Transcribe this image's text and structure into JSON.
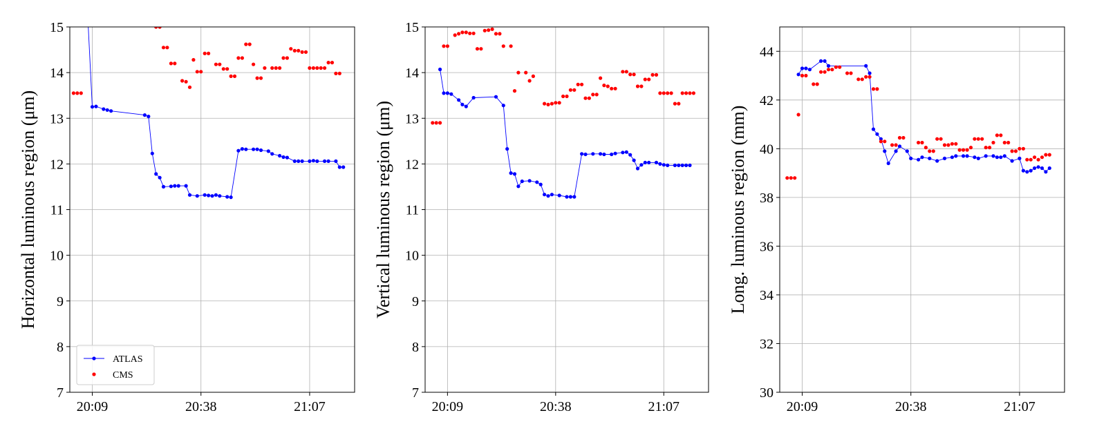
{
  "chart_data": [
    {
      "type": "line",
      "ylabel": "Horizontal luminous region (μm)",
      "xlabel": "",
      "ylim": [
        7,
        15
      ],
      "xlim": [
        "20:03",
        "21:19"
      ],
      "xticks": [
        "20:09",
        "20:38",
        "21:07"
      ],
      "yticks": [
        7,
        8,
        9,
        10,
        11,
        12,
        13,
        14,
        15
      ],
      "grid": true,
      "legend": {
        "placement": "bottom-left",
        "entries": [
          "ATLAS",
          "CMS"
        ]
      },
      "series": [
        {
          "name": "ATLAS",
          "style": "line+markers",
          "color": "#0000ff",
          "x": [
            "20:07",
            "20:09",
            "20:10",
            "20:12",
            "20:13",
            "20:14",
            "20:23",
            "20:24",
            "20:25",
            "20:26",
            "20:27",
            "20:28",
            "20:30",
            "20:31",
            "20:32",
            "20:34",
            "20:35",
            "20:37",
            "20:39",
            "20:40",
            "20:41",
            "20:42",
            "20:43",
            "20:45",
            "20:46",
            "20:48",
            "20:49",
            "20:50",
            "20:52",
            "20:53",
            "20:54",
            "20:56",
            "20:57",
            "20:59",
            "21:00",
            "21:01",
            "21:03",
            "21:04",
            "21:05",
            "21:07",
            "21:08",
            "21:09",
            "21:11",
            "21:12",
            "21:14",
            "21:15",
            "21:16"
          ],
          "y": [
            16.5,
            13.25,
            13.26,
            13.2,
            13.18,
            13.16,
            13.07,
            13.04,
            12.23,
            11.78,
            11.7,
            11.5,
            11.51,
            11.52,
            11.52,
            11.52,
            11.32,
            11.3,
            11.32,
            11.31,
            11.3,
            11.32,
            11.3,
            11.28,
            11.27,
            12.29,
            12.33,
            12.32,
            12.32,
            12.32,
            12.3,
            12.28,
            12.22,
            12.18,
            12.15,
            12.14,
            12.06,
            12.06,
            12.06,
            12.06,
            12.07,
            12.06,
            12.06,
            12.06,
            12.06,
            11.93,
            11.93
          ]
        },
        {
          "name": "CMS",
          "style": "markers",
          "color": "#ff0000",
          "x": [
            "20:04",
            "20:05",
            "20:06",
            "20:26",
            "20:27",
            "20:28",
            "20:29",
            "20:30",
            "20:31",
            "20:33",
            "20:34",
            "20:35",
            "20:36",
            "20:37",
            "20:38",
            "20:39",
            "20:40",
            "20:42",
            "20:43",
            "20:44",
            "20:45",
            "20:46",
            "20:47",
            "20:48",
            "20:49",
            "20:50",
            "20:51",
            "20:52",
            "20:53",
            "20:54",
            "20:55",
            "20:57",
            "20:58",
            "20:59",
            "21:00",
            "21:01",
            "21:02",
            "21:03",
            "21:04",
            "21:05",
            "21:06",
            "21:07",
            "21:08",
            "21:09",
            "21:10",
            "21:11",
            "21:12",
            "21:13",
            "21:14",
            "21:15"
          ],
          "y": [
            13.55,
            13.55,
            13.55,
            15.0,
            15.0,
            14.55,
            14.55,
            14.2,
            14.2,
            13.82,
            13.8,
            13.68,
            14.28,
            14.02,
            14.02,
            14.42,
            14.42,
            14.18,
            14.18,
            14.08,
            14.08,
            13.92,
            13.92,
            14.32,
            14.32,
            14.62,
            14.62,
            14.18,
            13.88,
            13.88,
            14.1,
            14.1,
            14.1,
            14.1,
            14.32,
            14.32,
            14.52,
            14.48,
            14.48,
            14.45,
            14.45,
            14.1,
            14.1,
            14.1,
            14.1,
            14.1,
            14.22,
            14.22,
            13.98,
            13.98
          ]
        }
      ]
    },
    {
      "type": "line",
      "ylabel": "Vertical luminous region (μm)",
      "xlabel": "",
      "ylim": [
        7,
        15
      ],
      "xlim": [
        "20:03",
        "21:19"
      ],
      "xticks": [
        "20:09",
        "20:38",
        "21:07"
      ],
      "yticks": [
        7,
        8,
        9,
        10,
        11,
        12,
        13,
        14,
        15
      ],
      "grid": true,
      "series": [
        {
          "name": "ATLAS",
          "style": "line+markers",
          "color": "#0000ff",
          "x": [
            "20:07",
            "20:08",
            "20:09",
            "20:10",
            "20:12",
            "20:13",
            "20:14",
            "20:16",
            "20:22",
            "20:24",
            "20:25",
            "20:26",
            "20:27",
            "20:28",
            "20:29",
            "20:31",
            "20:33",
            "20:34",
            "20:35",
            "20:36",
            "20:37",
            "20:39",
            "20:41",
            "20:42",
            "20:43",
            "20:45",
            "20:46",
            "20:48",
            "20:50",
            "20:51",
            "20:53",
            "20:54",
            "20:56",
            "20:57",
            "20:58",
            "20:59",
            "21:00",
            "21:01",
            "21:02",
            "21:03",
            "21:05",
            "21:06",
            "21:07",
            "21:08",
            "21:10",
            "21:11",
            "21:12",
            "21:13",
            "21:14"
          ],
          "y": [
            14.07,
            13.55,
            13.55,
            13.53,
            13.4,
            13.3,
            13.26,
            13.45,
            13.47,
            13.28,
            12.33,
            11.8,
            11.78,
            11.51,
            11.62,
            11.63,
            11.6,
            11.55,
            11.33,
            11.3,
            11.33,
            11.31,
            11.28,
            11.28,
            11.28,
            12.22,
            12.21,
            12.22,
            12.22,
            12.21,
            12.21,
            12.23,
            12.25,
            12.26,
            12.2,
            12.08,
            11.9,
            11.98,
            12.03,
            12.03,
            12.03,
            12.0,
            11.98,
            11.97,
            11.97,
            11.97,
            11.97,
            11.97,
            11.97
          ]
        },
        {
          "name": "CMS",
          "style": "markers",
          "color": "#ff0000",
          "x": [
            "20:05",
            "20:06",
            "20:07",
            "20:08",
            "20:09",
            "20:11",
            "20:12",
            "20:13",
            "20:14",
            "20:15",
            "20:16",
            "20:17",
            "20:18",
            "20:19",
            "20:20",
            "20:21",
            "20:22",
            "20:23",
            "20:24",
            "20:26",
            "20:27",
            "20:28",
            "20:30",
            "20:31",
            "20:32",
            "20:35",
            "20:36",
            "20:37",
            "20:38",
            "20:39",
            "20:40",
            "20:41",
            "20:42",
            "20:43",
            "20:44",
            "20:45",
            "20:46",
            "20:47",
            "20:48",
            "20:49",
            "20:50",
            "20:51",
            "20:52",
            "20:53",
            "20:54",
            "20:56",
            "20:57",
            "20:58",
            "20:59",
            "21:00",
            "21:01",
            "21:02",
            "21:03",
            "21:04",
            "21:05",
            "21:06",
            "21:07",
            "21:08",
            "21:09",
            "21:10",
            "21:11",
            "21:12",
            "21:13",
            "21:14",
            "21:15"
          ],
          "y": [
            12.9,
            12.9,
            12.9,
            14.58,
            14.58,
            14.82,
            14.85,
            14.88,
            14.88,
            14.86,
            14.86,
            14.52,
            14.52,
            14.92,
            14.93,
            14.95,
            14.85,
            14.85,
            14.58,
            14.58,
            13.6,
            14.0,
            14.0,
            13.82,
            13.92,
            13.32,
            13.3,
            13.32,
            13.34,
            13.34,
            13.48,
            13.48,
            13.62,
            13.62,
            13.74,
            13.74,
            13.44,
            13.44,
            13.52,
            13.52,
            13.88,
            13.72,
            13.7,
            13.65,
            13.65,
            14.02,
            14.02,
            13.96,
            13.96,
            13.7,
            13.7,
            13.85,
            13.85,
            13.95,
            13.95,
            13.55,
            13.55,
            13.55,
            13.55,
            13.32,
            13.32,
            13.55,
            13.55,
            13.55,
            13.55
          ]
        }
      ]
    },
    {
      "type": "line",
      "ylabel": "Long. luminous region (mm)",
      "xlabel": "",
      "ylim": [
        30,
        45
      ],
      "xlim": [
        "20:03",
        "21:19"
      ],
      "xticks": [
        "20:09",
        "20:38",
        "21:07"
      ],
      "yticks": [
        30,
        32,
        34,
        36,
        38,
        40,
        42,
        44
      ],
      "grid": true,
      "series": [
        {
          "name": "ATLAS",
          "style": "line+markers",
          "color": "#0000ff",
          "x": [
            "20:08",
            "20:09",
            "20:10",
            "20:11",
            "20:14",
            "20:15",
            "20:16",
            "20:26",
            "20:27",
            "20:28",
            "20:29",
            "20:30",
            "20:31",
            "20:32",
            "20:34",
            "20:35",
            "20:37",
            "20:38",
            "20:40",
            "20:41",
            "20:43",
            "20:45",
            "20:47",
            "20:49",
            "20:50",
            "20:52",
            "20:53",
            "20:55",
            "20:56",
            "20:58",
            "21:00",
            "21:01",
            "21:02",
            "21:03",
            "21:05",
            "21:07",
            "21:08",
            "21:09",
            "21:10",
            "21:11",
            "21:12",
            "21:13",
            "21:14",
            "21:15"
          ],
          "y": [
            43.05,
            43.3,
            43.3,
            43.25,
            43.6,
            43.6,
            43.4,
            43.4,
            43.1,
            40.8,
            40.6,
            40.4,
            39.9,
            39.4,
            39.9,
            40.1,
            39.9,
            39.6,
            39.55,
            39.65,
            39.6,
            39.5,
            39.6,
            39.65,
            39.7,
            39.7,
            39.7,
            39.65,
            39.6,
            39.7,
            39.7,
            39.65,
            39.65,
            39.7,
            39.5,
            39.6,
            39.1,
            39.05,
            39.1,
            39.2,
            39.25,
            39.2,
            39.05,
            39.2
          ]
        },
        {
          "name": "CMS",
          "style": "markers",
          "color": "#ff0000",
          "x": [
            "20:05",
            "20:06",
            "20:07",
            "20:08",
            "20:09",
            "20:10",
            "20:12",
            "20:13",
            "20:14",
            "20:15",
            "20:16",
            "20:17",
            "20:18",
            "20:19",
            "20:21",
            "20:22",
            "20:24",
            "20:25",
            "20:26",
            "20:27",
            "20:28",
            "20:29",
            "20:30",
            "20:31",
            "20:33",
            "20:34",
            "20:35",
            "20:36",
            "20:40",
            "20:41",
            "20:42",
            "20:43",
            "20:44",
            "20:45",
            "20:46",
            "20:47",
            "20:48",
            "20:49",
            "20:50",
            "20:51",
            "20:52",
            "20:53",
            "20:54",
            "20:55",
            "20:56",
            "20:57",
            "20:58",
            "20:59",
            "21:00",
            "21:01",
            "21:02",
            "21:03",
            "21:04",
            "21:05",
            "21:06",
            "21:07",
            "21:08",
            "21:09",
            "21:10",
            "21:11",
            "21:12",
            "21:13",
            "21:14",
            "21:15"
          ],
          "y": [
            38.8,
            38.8,
            38.8,
            41.4,
            43.0,
            43.0,
            42.65,
            42.65,
            43.15,
            43.15,
            43.25,
            43.25,
            43.35,
            43.35,
            43.1,
            43.1,
            42.85,
            42.85,
            42.95,
            42.95,
            42.45,
            42.45,
            40.3,
            40.3,
            40.15,
            40.15,
            40.45,
            40.45,
            40.25,
            40.25,
            40.05,
            39.9,
            39.9,
            40.4,
            40.4,
            40.15,
            40.15,
            40.2,
            40.2,
            39.95,
            39.95,
            39.95,
            40.05,
            40.4,
            40.4,
            40.4,
            40.05,
            40.05,
            40.25,
            40.55,
            40.55,
            40.25,
            40.25,
            39.9,
            39.9,
            40.0,
            40.0,
            39.55,
            39.55,
            39.65,
            39.55,
            39.65,
            39.75,
            39.75
          ]
        }
      ]
    }
  ]
}
